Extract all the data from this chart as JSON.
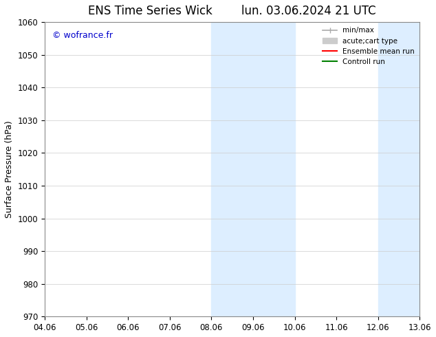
{
  "title": "ENS Time Series Wick        lun. 03.06.2024 21 UTC",
  "ylabel": "Surface Pressure (hPa)",
  "ylim": [
    970,
    1060
  ],
  "yticks": [
    970,
    980,
    990,
    1000,
    1010,
    1020,
    1030,
    1040,
    1050,
    1060
  ],
  "xtick_labels": [
    "04.06",
    "05.06",
    "06.06",
    "07.06",
    "08.06",
    "09.06",
    "10.06",
    "11.06",
    "12.06",
    "13.06"
  ],
  "xtick_positions": [
    0,
    1,
    2,
    3,
    4,
    5,
    6,
    7,
    8,
    9
  ],
  "shaded_regions": [
    {
      "xmin": 4,
      "xmax": 6
    },
    {
      "xmin": 8,
      "xmax": 9
    }
  ],
  "shaded_color": "#ddeeff",
  "watermark": "© wofrance.fr",
  "watermark_color": "#0000cc",
  "background_color": "#ffffff",
  "grid_color": "#cccccc",
  "legend_entries": [
    {
      "label": "min/max",
      "color": "#aaaaaa",
      "linestyle": "-"
    },
    {
      "label": "acute;cart type",
      "color": "#cccccc",
      "linestyle": "-"
    },
    {
      "label": "Ensemble mean run",
      "color": "#ff0000",
      "linestyle": "-"
    },
    {
      "label": "Controll run",
      "color": "#008000",
      "linestyle": "-"
    }
  ],
  "title_fontsize": 12,
  "axis_fontsize": 9,
  "tick_fontsize": 8.5
}
